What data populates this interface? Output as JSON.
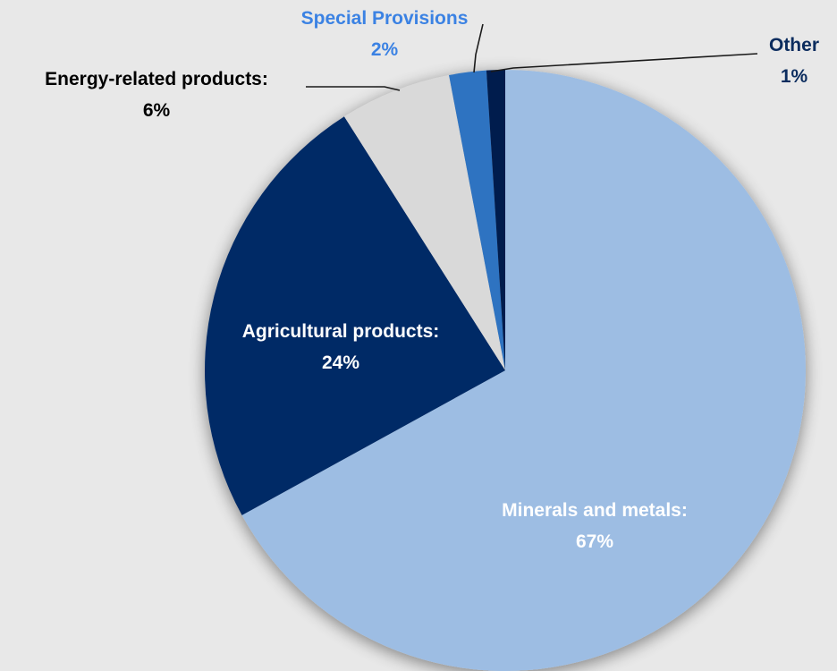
{
  "chart_data": {
    "type": "pie",
    "slices": [
      {
        "label": "Minerals and metals:",
        "value_text": "67%",
        "value": 67,
        "color": "#9dbde3",
        "label_color": "#ffffff"
      },
      {
        "label": "Agricultural products:",
        "value_text": "24%",
        "value": 24,
        "color": "#002a66",
        "label_color": "#ffffff"
      },
      {
        "label": "Energy-related products:",
        "value_text": "6%",
        "value": 6,
        "color": "#d9d9d9",
        "label_color": "#000000"
      },
      {
        "label": "Special Provisions",
        "value_text": "2%",
        "value": 2,
        "color": "#2e73c1",
        "label_color": "#3b82e3"
      },
      {
        "label": "Other",
        "value_text": "1%",
        "value": 1,
        "color": "#051f4d",
        "label_color": "#0b2c5e"
      }
    ]
  }
}
